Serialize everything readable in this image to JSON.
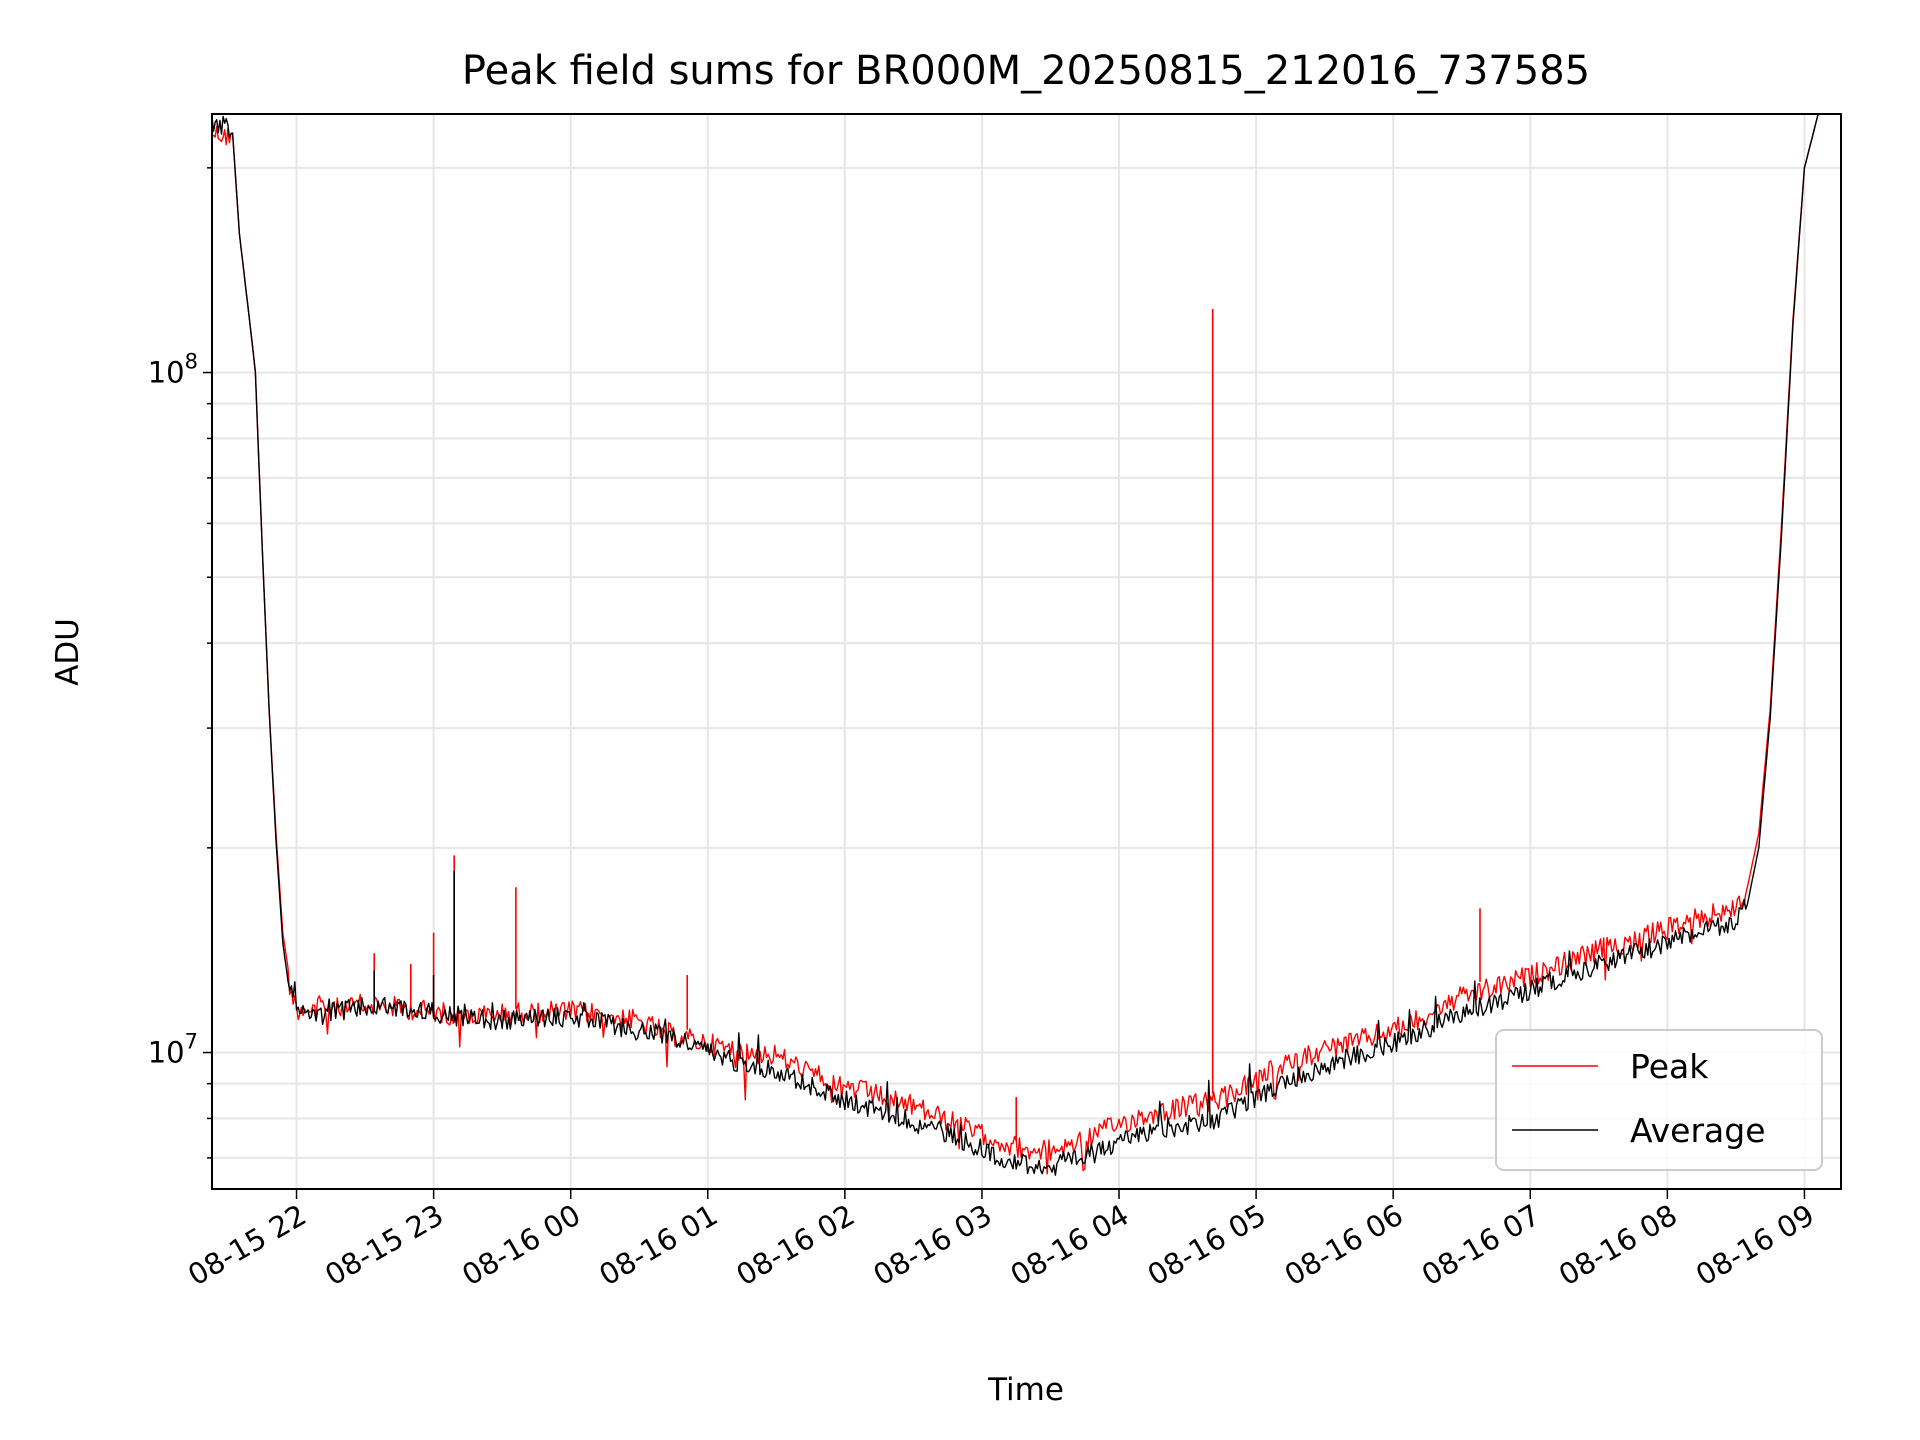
{
  "chart_data": {
    "type": "line",
    "title": "Peak field sums for BR000M_20250815_212016_737585",
    "xlabel": "Time",
    "ylabel": "ADU",
    "yscale": "log",
    "ylim": [
      6300000,
      240000000
    ],
    "xlim": [
      "2025-08-15 21:23",
      "2025-08-16 09:16"
    ],
    "grid": true,
    "legend_position": "lower-right",
    "x_ticks": [
      {
        "time": "2025-08-15 22:00",
        "label": "08-15 22"
      },
      {
        "time": "2025-08-15 23:00",
        "label": "08-15 23"
      },
      {
        "time": "2025-08-16 00:00",
        "label": "08-16 00"
      },
      {
        "time": "2025-08-16 01:00",
        "label": "08-16 01"
      },
      {
        "time": "2025-08-16 02:00",
        "label": "08-16 02"
      },
      {
        "time": "2025-08-16 03:00",
        "label": "08-16 03"
      },
      {
        "time": "2025-08-16 04:00",
        "label": "08-16 04"
      },
      {
        "time": "2025-08-16 05:00",
        "label": "08-16 05"
      },
      {
        "time": "2025-08-16 06:00",
        "label": "08-16 06"
      },
      {
        "time": "2025-08-16 07:00",
        "label": "08-16 07"
      },
      {
        "time": "2025-08-16 08:00",
        "label": "08-16 08"
      },
      {
        "time": "2025-08-16 09:00",
        "label": "08-16 09"
      }
    ],
    "y_ticks": [
      {
        "value": 10000000,
        "base": "10",
        "exp": "7"
      },
      {
        "value": 100000000,
        "base": "10",
        "exp": "8"
      }
    ],
    "series": [
      {
        "name": "Peak",
        "color": "#ff0000",
        "points": [
          [
            "2025-08-15 21:23",
            230000000
          ],
          [
            "2025-08-15 21:32",
            225000000
          ],
          [
            "2025-08-15 21:35",
            160000000
          ],
          [
            "2025-08-15 21:40",
            115000000
          ],
          [
            "2025-08-15 21:42",
            100000000
          ],
          [
            "2025-08-15 21:45",
            55000000
          ],
          [
            "2025-08-15 21:48",
            32000000
          ],
          [
            "2025-08-15 21:51",
            21000000
          ],
          [
            "2025-08-15 21:54",
            15000000
          ],
          [
            "2025-08-15 21:57",
            12800000
          ],
          [
            "2025-08-15 22:00",
            11800000
          ],
          [
            "2025-08-15 22:10",
            11900000
          ],
          [
            "2025-08-15 22:20",
            11800000
          ],
          [
            "2025-08-15 22:30",
            12000000
          ],
          [
            "2025-08-15 22:40",
            11900000
          ],
          [
            "2025-08-15 22:50",
            11800000
          ],
          [
            "2025-08-15 23:00",
            11700000
          ],
          [
            "2025-08-15 23:15",
            11500000
          ],
          [
            "2025-08-15 23:30",
            11600000
          ],
          [
            "2025-08-15 23:45",
            11700000
          ],
          [
            "2025-08-16 00:00",
            11700000
          ],
          [
            "2025-08-16 00:15",
            11600000
          ],
          [
            "2025-08-16 00:30",
            11300000
          ],
          [
            "2025-08-16 00:45",
            10800000
          ],
          [
            "2025-08-16 01:00",
            10500000
          ],
          [
            "2025-08-16 01:15",
            10200000
          ],
          [
            "2025-08-16 01:30",
            10100000
          ],
          [
            "2025-08-16 01:45",
            9500000
          ],
          [
            "2025-08-16 02:00",
            9100000
          ],
          [
            "2025-08-16 02:15",
            8800000
          ],
          [
            "2025-08-16 02:30",
            8500000
          ],
          [
            "2025-08-16 02:45",
            8100000
          ],
          [
            "2025-08-16 03:00",
            7700000
          ],
          [
            "2025-08-16 03:15",
            7400000
          ],
          [
            "2025-08-16 03:30",
            7300000
          ],
          [
            "2025-08-16 03:45",
            7600000
          ],
          [
            "2025-08-16 04:00",
            8000000
          ],
          [
            "2025-08-16 04:15",
            8300000
          ],
          [
            "2025-08-16 04:30",
            8500000
          ],
          [
            "2025-08-16 04:45",
            8700000
          ],
          [
            "2025-08-16 05:00",
            9300000
          ],
          [
            "2025-08-16 05:15",
            9900000
          ],
          [
            "2025-08-16 05:30",
            10300000
          ],
          [
            "2025-08-16 05:45",
            10600000
          ],
          [
            "2025-08-16 06:00",
            11000000
          ],
          [
            "2025-08-16 06:15",
            11600000
          ],
          [
            "2025-08-16 06:30",
            12300000
          ],
          [
            "2025-08-16 06:45",
            12700000
          ],
          [
            "2025-08-16 07:00",
            13200000
          ],
          [
            "2025-08-16 07:15",
            13800000
          ],
          [
            "2025-08-16 07:30",
            14400000
          ],
          [
            "2025-08-16 07:45",
            14900000
          ],
          [
            "2025-08-16 08:00",
            15500000
          ],
          [
            "2025-08-16 08:15",
            16100000
          ],
          [
            "2025-08-16 08:30",
            16600000
          ],
          [
            "2025-08-16 08:35",
            17500000
          ],
          [
            "2025-08-16 08:40",
            21000000
          ],
          [
            "2025-08-16 08:45",
            32000000
          ],
          [
            "2025-08-16 08:50",
            60000000
          ],
          [
            "2025-08-16 08:55",
            120000000
          ],
          [
            "2025-08-16 09:00",
            200000000
          ],
          [
            "2025-08-16 09:06",
            240000000
          ]
        ],
        "spikes": [
          [
            "2025-08-15 22:34",
            14000000
          ],
          [
            "2025-08-15 22:50",
            13500000
          ],
          [
            "2025-08-15 23:00",
            15000000
          ],
          [
            "2025-08-15 23:09",
            19500000
          ],
          [
            "2025-08-15 23:36",
            17500000
          ],
          [
            "2025-08-16 00:51",
            13000000
          ],
          [
            "2025-08-16 03:15",
            8600000
          ],
          [
            "2025-08-16 04:41",
            124000000
          ],
          [
            "2025-08-16 06:38",
            16300000
          ]
        ]
      },
      {
        "name": "Average",
        "color": "#000000",
        "points": [
          [
            "2025-08-15 21:23",
            230000000
          ],
          [
            "2025-08-15 21:32",
            225000000
          ],
          [
            "2025-08-15 21:35",
            160000000
          ],
          [
            "2025-08-15 21:40",
            115000000
          ],
          [
            "2025-08-15 21:42",
            100000000
          ],
          [
            "2025-08-15 21:45",
            55000000
          ],
          [
            "2025-08-15 21:48",
            32000000
          ],
          [
            "2025-08-15 21:51",
            20500000
          ],
          [
            "2025-08-15 21:54",
            14500000
          ],
          [
            "2025-08-15 21:57",
            12200000
          ],
          [
            "2025-08-15 22:00",
            11300000
          ],
          [
            "2025-08-15 22:10",
            11200000
          ],
          [
            "2025-08-15 22:20",
            11400000
          ],
          [
            "2025-08-15 22:30",
            11500000
          ],
          [
            "2025-08-15 22:40",
            11500000
          ],
          [
            "2025-08-15 22:50",
            11400000
          ],
          [
            "2025-08-15 23:00",
            11300000
          ],
          [
            "2025-08-15 23:15",
            11100000
          ],
          [
            "2025-08-15 23:30",
            11000000
          ],
          [
            "2025-08-15 23:45",
            11100000
          ],
          [
            "2025-08-16 00:00",
            11100000
          ],
          [
            "2025-08-16 00:15",
            10900000
          ],
          [
            "2025-08-16 00:30",
            10600000
          ],
          [
            "2025-08-16 00:45",
            10400000
          ],
          [
            "2025-08-16 01:00",
            9900000
          ],
          [
            "2025-08-16 01:15",
            9500000
          ],
          [
            "2025-08-16 01:30",
            9300000
          ],
          [
            "2025-08-16 01:45",
            8800000
          ],
          [
            "2025-08-16 02:00",
            8400000
          ],
          [
            "2025-08-16 02:15",
            8100000
          ],
          [
            "2025-08-16 02:30",
            7800000
          ],
          [
            "2025-08-16 02:45",
            7500000
          ],
          [
            "2025-08-16 03:00",
            7100000
          ],
          [
            "2025-08-16 03:15",
            6800000
          ],
          [
            "2025-08-16 03:30",
            6700000
          ],
          [
            "2025-08-16 03:45",
            6900000
          ],
          [
            "2025-08-16 04:00",
            7300000
          ],
          [
            "2025-08-16 04:15",
            7600000
          ],
          [
            "2025-08-16 04:30",
            7700000
          ],
          [
            "2025-08-16 04:45",
            7900000
          ],
          [
            "2025-08-16 05:00",
            8500000
          ],
          [
            "2025-08-16 05:15",
            9000000
          ],
          [
            "2025-08-16 05:30",
            9400000
          ],
          [
            "2025-08-16 05:45",
            9800000
          ],
          [
            "2025-08-16 06:00",
            10200000
          ],
          [
            "2025-08-16 06:15",
            10700000
          ],
          [
            "2025-08-16 06:30",
            11300000
          ],
          [
            "2025-08-16 06:45",
            11700000
          ],
          [
            "2025-08-16 07:00",
            12200000
          ],
          [
            "2025-08-16 07:15",
            12800000
          ],
          [
            "2025-08-16 07:30",
            13300000
          ],
          [
            "2025-08-16 07:45",
            13800000
          ],
          [
            "2025-08-16 08:00",
            14300000
          ],
          [
            "2025-08-16 08:15",
            14900000
          ],
          [
            "2025-08-16 08:30",
            15300000
          ],
          [
            "2025-08-16 08:35",
            16500000
          ],
          [
            "2025-08-16 08:40",
            20000000
          ],
          [
            "2025-08-16 08:45",
            31000000
          ],
          [
            "2025-08-16 08:50",
            58000000
          ],
          [
            "2025-08-16 08:55",
            118000000
          ],
          [
            "2025-08-16 09:00",
            200000000
          ],
          [
            "2025-08-16 09:06",
            240000000
          ]
        ],
        "spikes": [
          [
            "2025-08-15 23:09",
            18500000
          ],
          [
            "2025-08-15 23:00",
            13000000
          ],
          [
            "2025-08-15 22:34",
            13200000
          ]
        ]
      }
    ]
  }
}
